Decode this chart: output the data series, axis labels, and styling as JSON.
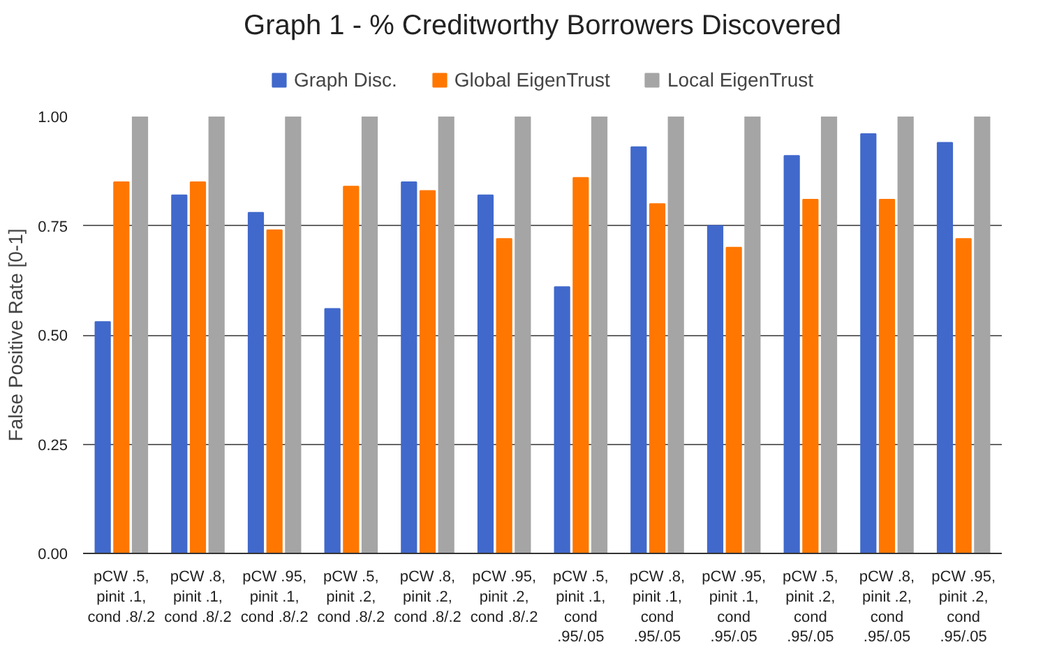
{
  "chart_data": {
    "type": "bar",
    "title": "Graph 1 - % Creditworthy Borrowers Discovered",
    "ylabel": "False Positive Rate [0-1]",
    "categories": [
      "pCW .5, pinit .1, cond .8/.2",
      "pCW .8, pinit .1, cond .8/.2",
      "pCW .95, pinit .1, cond .8/.2",
      "pCW .5, pinit .2, cond .8/.2",
      "pCW .8, pinit .2, cond .8/.2",
      "pCW .95, pinit .2, cond .8/.2",
      "pCW .5, pinit .1, cond .95/.05",
      "pCW .8, pinit .1, cond .95/.05",
      "pCW .95, pinit .1, cond .95/.05",
      "pCW .5, pinit .2, cond .95/.05",
      "pCW .8, pinit .2, cond .95/.05",
      "pCW .95, pinit .2, cond .95/.05"
    ],
    "series": [
      {
        "name": "Graph Disc.",
        "color": "#4169cc",
        "values": [
          0.53,
          0.82,
          0.78,
          0.56,
          0.85,
          0.82,
          0.61,
          0.93,
          0.75,
          0.91,
          0.96,
          0.94
        ]
      },
      {
        "name": "Global EigenTrust",
        "color": "#ff7700",
        "values": [
          0.85,
          0.85,
          0.74,
          0.84,
          0.83,
          0.72,
          0.86,
          0.8,
          0.7,
          0.81,
          0.81,
          0.72
        ]
      },
      {
        "name": "Local EigenTrust",
        "color": "#a5a5a5",
        "values": [
          1,
          1,
          1,
          1,
          1,
          1,
          1,
          1,
          1,
          1,
          1,
          1
        ]
      }
    ],
    "ylim": [
      0,
      1
    ],
    "yticks": [
      {
        "value": 0,
        "label": "0.00"
      },
      {
        "value": 0.25,
        "label": "0.25"
      },
      {
        "value": 0.5,
        "label": "0.50"
      },
      {
        "value": 0.75,
        "label": "0.75"
      },
      {
        "value": 1,
        "label": "1.00"
      }
    ],
    "grid": "y",
    "legend": "top"
  }
}
